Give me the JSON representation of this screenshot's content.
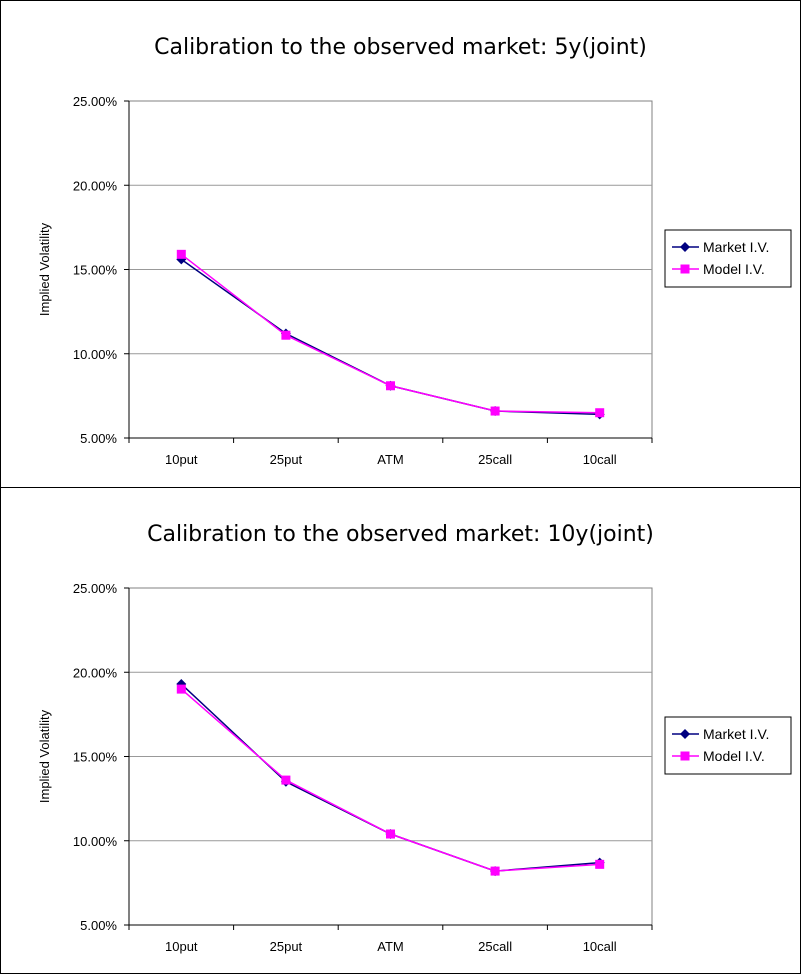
{
  "chart_data": [
    {
      "type": "line",
      "title": "Calibration to the observed market: 5y(joint)",
      "xlabel": "",
      "ylabel": "Implied Volatility",
      "categories": [
        "10put",
        "25put",
        "ATM",
        "25call",
        "10call"
      ],
      "ylim": [
        0.05,
        0.25
      ],
      "yticks": [
        "5.00%",
        "10.00%",
        "15.00%",
        "20.00%",
        "25.00%"
      ],
      "grid": "horizontal",
      "legend": "right",
      "series": [
        {
          "name": "Market I.V.",
          "marker": "diamond",
          "color": "#000080",
          "values": [
            0.156,
            0.112,
            0.081,
            0.066,
            0.064
          ]
        },
        {
          "name": "Model I.V.",
          "marker": "square",
          "color": "#ff00ff",
          "values": [
            0.159,
            0.111,
            0.081,
            0.066,
            0.065
          ]
        }
      ]
    },
    {
      "type": "line",
      "title": "Calibration to the observed market: 10y(joint)",
      "xlabel": "",
      "ylabel": "Implied Volatility",
      "categories": [
        "10put",
        "25put",
        "ATM",
        "25call",
        "10call"
      ],
      "ylim": [
        0.05,
        0.25
      ],
      "yticks": [
        "5.00%",
        "10.00%",
        "15.00%",
        "20.00%",
        "25.00%"
      ],
      "grid": "horizontal",
      "legend": "right",
      "series": [
        {
          "name": "Market I.V.",
          "marker": "diamond",
          "color": "#000080",
          "values": [
            0.193,
            0.135,
            0.104,
            0.082,
            0.087
          ]
        },
        {
          "name": "Model I.V.",
          "marker": "square",
          "color": "#ff00ff",
          "values": [
            0.19,
            0.136,
            0.104,
            0.082,
            0.086
          ]
        }
      ]
    }
  ]
}
